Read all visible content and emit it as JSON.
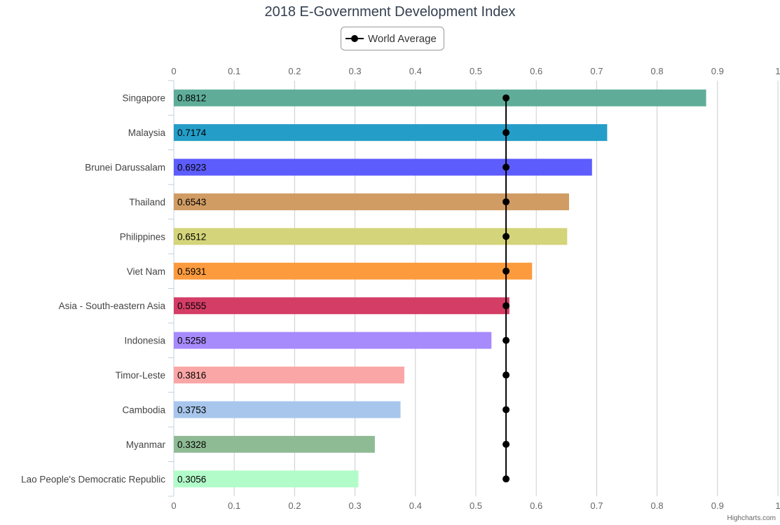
{
  "chart_data": {
    "type": "bar",
    "orientation": "horizontal",
    "title": "2018 E-Government Development Index",
    "categories": [
      "Singapore",
      "Malaysia",
      "Brunei Darussalam",
      "Thailand",
      "Philippines",
      "Viet Nam",
      "Asia - South-eastern Asia",
      "Indonesia",
      "Timor-Leste",
      "Cambodia",
      "Myanmar",
      "Lao People's Democratic Republic"
    ],
    "values": [
      0.8812,
      0.7174,
      0.6923,
      0.6543,
      0.6512,
      0.5931,
      0.5555,
      0.5258,
      0.3816,
      0.3753,
      0.3328,
      0.3056
    ],
    "value_labels": [
      "0.8812",
      "0.7174",
      "0.6923",
      "0.6543",
      "0.6512",
      "0.5931",
      "0.5555",
      "0.5258",
      "0.3816",
      "0.3753",
      "0.3328",
      "0.3056"
    ],
    "bar_colors": [
      "#5fad99",
      "#249ec8",
      "#5d5cfc",
      "#d09c64",
      "#d4d47a",
      "#fb9b3e",
      "#d43d66",
      "#a78afc",
      "#fba6a6",
      "#a8c6ec",
      "#8fbb94",
      "#b2fcca"
    ],
    "series": [
      {
        "name": "World Average",
        "type": "line",
        "value": 0.55,
        "color": "#000000"
      }
    ],
    "xlim": [
      0,
      1
    ],
    "ticks": [
      0,
      0.1,
      0.2,
      0.3,
      0.4,
      0.5,
      0.6,
      0.7,
      0.8,
      0.9,
      1
    ],
    "tick_labels": [
      "0",
      "0.1",
      "0.2",
      "0.3",
      "0.4",
      "0.5",
      "0.6",
      "0.7",
      "0.8",
      "0.9",
      "1"
    ],
    "grid": true,
    "legend": "top-center",
    "axis_labels_position": "top-and-bottom"
  },
  "credits": "Highcharts.com",
  "colors": {
    "grid": "#cccccc",
    "axis_text": "#666666",
    "category_text": "#444444",
    "title": "#333f50"
  }
}
